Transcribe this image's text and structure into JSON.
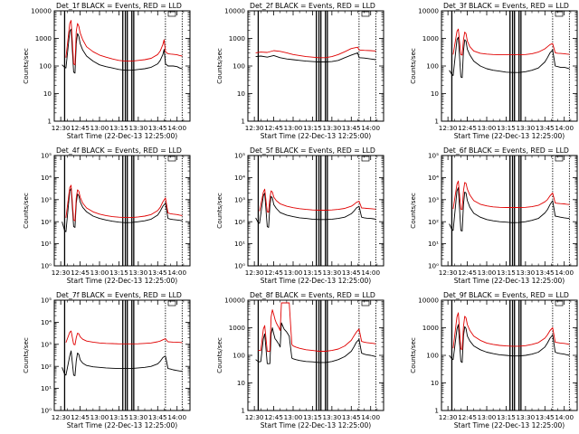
{
  "figure": {
    "xlabel": "Start Time (22-Dec-13 12:25:00)",
    "ylabel": "Counts/sec",
    "colors": {
      "events": "#000000",
      "lld": "#e00000",
      "axes": "#000000",
      "background": "#ffffff"
    },
    "x_ticks": [
      "12:30",
      "12:45",
      "13:00",
      "13:15",
      "13:30",
      "13:45",
      "14:00"
    ],
    "x_tick_minutes": [
      5,
      20,
      35,
      50,
      65,
      80,
      95
    ],
    "x_range_minutes": [
      0,
      105
    ],
    "vertical_marker_minutes": {
      "solid": [
        8,
        53,
        55,
        56.5,
        60,
        61.5
      ],
      "dotted": [
        86,
        99
      ]
    }
  },
  "chart_data": [
    {
      "type": "line",
      "title": "Det_1f BLACK = Events, RED = LLD",
      "ylog": true,
      "ylim": [
        1,
        10000
      ],
      "ytick_labels": [
        "1",
        "10",
        "100",
        "1000",
        "10000"
      ],
      "x": [
        6,
        8,
        9,
        12,
        13,
        15,
        16,
        17,
        18,
        19,
        20,
        22,
        25,
        30,
        35,
        40,
        45,
        50,
        55,
        60,
        65,
        70,
        75,
        80,
        82,
        84,
        85,
        86,
        87,
        88,
        90,
        92,
        95,
        97,
        99
      ],
      "series": [
        {
          "name": "BLACK = Events",
          "values": [
            110,
            90,
            85,
            1800,
            2200,
            60,
            55,
            650,
            1500,
            1200,
            650,
            380,
            230,
            150,
            110,
            95,
            85,
            75,
            70,
            70,
            75,
            80,
            90,
            120,
            160,
            260,
            400,
            120,
            110,
            100,
            100,
            100,
            95,
            85,
            80
          ]
        },
        {
          "name": "RED = LLD",
          "values": [
            null,
            null,
            200,
            3500,
            4500,
            120,
            110,
            1800,
            3500,
            2800,
            1600,
            900,
            500,
            330,
            250,
            210,
            180,
            160,
            150,
            150,
            160,
            170,
            190,
            260,
            350,
            600,
            900,
            330,
            300,
            280,
            270,
            265,
            255,
            240,
            230
          ]
        }
      ]
    },
    {
      "type": "line",
      "title": "Det_2f BLACK = Events, RED = LLD",
      "ylog": true,
      "ylim": [
        1,
        10000
      ],
      "ytick_labels": [
        "1",
        "10",
        "100",
        "1000",
        "10000"
      ],
      "x": [
        6,
        10,
        15,
        20,
        25,
        30,
        35,
        40,
        45,
        50,
        55,
        60,
        65,
        70,
        75,
        80,
        85,
        86,
        90,
        95,
        99
      ],
      "series": [
        {
          "name": "BLACK = Events",
          "values": [
            220,
            230,
            210,
            240,
            200,
            180,
            170,
            160,
            150,
            145,
            140,
            140,
            145,
            160,
            200,
            250,
            300,
            200,
            195,
            180,
            170
          ]
        },
        {
          "name": "RED = LLD",
          "values": [
            300,
            320,
            310,
            360,
            340,
            300,
            260,
            240,
            220,
            210,
            200,
            200,
            220,
            260,
            330,
            430,
            480,
            380,
            370,
            360,
            350
          ]
        }
      ]
    },
    {
      "type": "line",
      "title": "Det_3f BLACK = Events, RED = LLD",
      "ylog": true,
      "ylim": [
        1,
        10000
      ],
      "ytick_labels": [
        "1",
        "10",
        "100",
        "1000",
        "10000"
      ],
      "x": [
        6,
        8,
        9,
        12,
        13,
        15,
        16,
        17,
        18,
        19,
        20,
        22,
        25,
        30,
        35,
        40,
        45,
        50,
        55,
        60,
        65,
        70,
        75,
        80,
        82,
        84,
        86,
        88,
        90,
        92,
        95,
        97,
        99
      ],
      "series": [
        {
          "name": "BLACK = Events",
          "values": [
            70,
            50,
            45,
            900,
            1100,
            40,
            38,
            350,
            900,
            800,
            400,
            250,
            150,
            100,
            80,
            70,
            65,
            60,
            58,
            58,
            62,
            70,
            85,
            140,
            200,
            300,
            380,
            100,
            95,
            90,
            90,
            85,
            80
          ]
        },
        {
          "name": "RED = LLD",
          "values": [
            null,
            null,
            260,
            1800,
            2200,
            260,
            250,
            900,
            1700,
            1500,
            800,
            500,
            350,
            290,
            270,
            260,
            255,
            255,
            255,
            255,
            260,
            280,
            320,
            420,
            500,
            600,
            650,
            300,
            290,
            285,
            280,
            270,
            265
          ]
        }
      ]
    },
    {
      "type": "line",
      "title": "Det_4f BLACK = Events, RED = LLD",
      "ylog": true,
      "ylim": [
        1,
        100000
      ],
      "ytick_labels": [
        "10⁰",
        "10¹",
        "10²",
        "10³",
        "10⁴",
        "10⁵"
      ],
      "x": [
        6,
        8,
        9,
        12,
        13,
        15,
        16,
        17,
        18,
        19,
        20,
        22,
        25,
        30,
        35,
        40,
        45,
        50,
        55,
        60,
        65,
        70,
        75,
        80,
        82,
        84,
        86,
        88,
        90,
        92,
        95,
        97,
        99
      ],
      "series": [
        {
          "name": "BLACK = Events",
          "values": [
            100,
            40,
            35,
            2500,
            3200,
            60,
            55,
            700,
            1800,
            1500,
            800,
            450,
            280,
            180,
            140,
            120,
            105,
            95,
            90,
            92,
            100,
            110,
            130,
            200,
            300,
            500,
            700,
            140,
            130,
            125,
            120,
            115,
            110
          ]
        },
        {
          "name": "RED = LLD",
          "values": [
            null,
            null,
            150,
            3500,
            4500,
            120,
            110,
            1200,
            2800,
            2400,
            1300,
            700,
            420,
            280,
            220,
            190,
            170,
            160,
            155,
            155,
            165,
            180,
            210,
            320,
            450,
            800,
            1200,
            250,
            230,
            220,
            210,
            200,
            190
          ]
        }
      ]
    },
    {
      "type": "line",
      "title": "Det_5f BLACK = Events, RED = LLD",
      "ylog": true,
      "ylim": [
        1,
        100000
      ],
      "ytick_labels": [
        "10⁰",
        "10¹",
        "10²",
        "10³",
        "10⁴",
        "10⁵"
      ],
      "x": [
        6,
        8,
        9,
        12,
        13,
        15,
        16,
        17,
        18,
        19,
        20,
        22,
        25,
        30,
        35,
        40,
        45,
        50,
        55,
        60,
        65,
        70,
        75,
        80,
        82,
        84,
        86,
        88,
        90,
        92,
        95,
        97,
        99
      ],
      "series": [
        {
          "name": "BLACK = Events",
          "values": [
            150,
            90,
            85,
            1500,
            2000,
            60,
            55,
            500,
            1400,
            1200,
            600,
            400,
            260,
            200,
            170,
            150,
            140,
            130,
            125,
            125,
            130,
            140,
            160,
            230,
            300,
            420,
            500,
            160,
            150,
            145,
            140,
            135,
            130
          ]
        },
        {
          "name": "RED = LLD",
          "values": [
            null,
            null,
            300,
            2200,
            3000,
            280,
            270,
            1200,
            2500,
            2200,
            1300,
            900,
            650,
            500,
            430,
            390,
            360,
            340,
            330,
            330,
            340,
            360,
            400,
            500,
            600,
            750,
            850,
            420,
            410,
            400,
            390,
            380,
            370
          ]
        }
      ]
    },
    {
      "type": "line",
      "title": "Det_6f BLACK = Events, RED = LLD",
      "ylog": true,
      "ylim": [
        1,
        100000
      ],
      "ytick_labels": [
        "10⁰",
        "10¹",
        "10²",
        "10³",
        "10⁴",
        "10⁵"
      ],
      "x": [
        6,
        8,
        9,
        12,
        13,
        15,
        16,
        17,
        18,
        19,
        20,
        22,
        25,
        30,
        35,
        40,
        45,
        50,
        55,
        60,
        65,
        70,
        75,
        80,
        82,
        84,
        86,
        88,
        90,
        92,
        95,
        97,
        99
      ],
      "series": [
        {
          "name": "BLACK = Events",
          "values": [
            80,
            45,
            40,
            2500,
            3500,
            40,
            38,
            600,
            2200,
            2000,
            900,
            450,
            240,
            160,
            125,
            110,
            100,
            95,
            90,
            92,
            100,
            115,
            140,
            250,
            350,
            600,
            900,
            180,
            170,
            160,
            150,
            145,
            140
          ]
        },
        {
          "name": "RED = LLD",
          "values": [
            null,
            null,
            380,
            5000,
            7000,
            370,
            360,
            2500,
            6000,
            5500,
            3000,
            1600,
            900,
            620,
            520,
            470,
            450,
            440,
            440,
            440,
            450,
            480,
            550,
            800,
            1000,
            1500,
            2000,
            700,
            680,
            660,
            640,
            620,
            600
          ]
        }
      ]
    },
    {
      "type": "line",
      "title": "Det_7f BLACK = Events, RED = LLD",
      "ylog": true,
      "ylim": [
        1,
        100000
      ],
      "ytick_labels": [
        "10⁰",
        "10¹",
        "10²",
        "10³",
        "10⁴",
        "10⁵"
      ],
      "x": [
        6,
        8,
        9,
        12,
        13,
        15,
        16,
        17,
        18,
        19,
        20,
        22,
        25,
        30,
        35,
        40,
        45,
        50,
        55,
        60,
        65,
        70,
        75,
        80,
        82,
        84,
        86,
        88,
        90,
        92,
        95,
        97,
        99
      ],
      "series": [
        {
          "name": "BLACK = Events",
          "values": [
            90,
            45,
            40,
            300,
            500,
            40,
            38,
            180,
            400,
            350,
            200,
            140,
            110,
            95,
            90,
            85,
            82,
            80,
            80,
            80,
            85,
            90,
            100,
            130,
            170,
            250,
            300,
            80,
            75,
            70,
            65,
            62,
            60
          ]
        },
        {
          "name": "RED = LLD",
          "values": [
            null,
            null,
            1200,
            3500,
            4000,
            1000,
            950,
            2000,
            3200,
            3000,
            2200,
            1700,
            1400,
            1250,
            1150,
            1100,
            1080,
            1050,
            1050,
            1050,
            1060,
            1100,
            1150,
            1300,
            1400,
            1600,
            1800,
            1300,
            1280,
            1250,
            1230,
            1220,
            1200
          ]
        }
      ]
    },
    {
      "type": "line",
      "title": "Det_8f BLACK = Events, RED = LLD",
      "ylog": true,
      "ylim": [
        1,
        10000
      ],
      "ytick_labels": [
        "1",
        "10",
        "100",
        "1000",
        "10000"
      ],
      "x": [
        6,
        8,
        9,
        10,
        12,
        13,
        15,
        17,
        18,
        19,
        20,
        21,
        22,
        24,
        25,
        26,
        28,
        30,
        32,
        34,
        35,
        37,
        40,
        45,
        50,
        55,
        60,
        65,
        70,
        75,
        80,
        82,
        84,
        86,
        88,
        90,
        92,
        95,
        97,
        99
      ],
      "series": [
        {
          "name": "BLACK = Events",
          "values": [
            70,
            60,
            58,
            60,
            400,
            600,
            50,
            50,
            600,
            1000,
            600,
            400,
            350,
            250,
            200,
            1500,
            900,
            700,
            500,
            80,
            75,
            70,
            65,
            60,
            58,
            55,
            55,
            60,
            70,
            90,
            140,
            200,
            300,
            380,
            120,
            110,
            105,
            100,
            95,
            90
          ]
        },
        {
          "name": "RED = LLD",
          "values": [
            null,
            150,
            150,
            150,
            900,
            1200,
            140,
            140,
            2500,
            4500,
            3000,
            2000,
            1500,
            1000,
            800,
            8000,
            8000,
            8000,
            8000,
            250,
            220,
            200,
            180,
            160,
            150,
            140,
            140,
            150,
            170,
            220,
            350,
            500,
            700,
            900,
            320,
            300,
            290,
            280,
            270,
            260
          ]
        }
      ]
    },
    {
      "type": "line",
      "title": "Det_9f BLACK = Events, RED = LLD",
      "ylog": true,
      "ylim": [
        1,
        10000
      ],
      "ytick_labels": [
        "1",
        "10",
        "100",
        "1000",
        "10000"
      ],
      "x": [
        6,
        8,
        9,
        12,
        13,
        15,
        16,
        17,
        18,
        19,
        20,
        22,
        25,
        30,
        35,
        40,
        45,
        50,
        55,
        60,
        65,
        70,
        75,
        80,
        82,
        84,
        86,
        88,
        90,
        92,
        95,
        97,
        99
      ],
      "series": [
        {
          "name": "BLACK = Events",
          "values": [
            100,
            75,
            70,
            900,
            1300,
            60,
            55,
            500,
            1100,
            950,
            500,
            330,
            220,
            160,
            130,
            115,
            105,
            100,
            95,
            95,
            100,
            110,
            130,
            200,
            280,
            420,
            550,
            130,
            120,
            115,
            110,
            105,
            100
          ]
        },
        {
          "name": "RED = LLD",
          "values": [
            null,
            null,
            180,
            2500,
            3500,
            170,
            165,
            1100,
            2600,
            2300,
            1300,
            800,
            500,
            350,
            280,
            250,
            230,
            220,
            215,
            215,
            225,
            250,
            290,
            420,
            550,
            800,
            1000,
            300,
            290,
            280,
            270,
            260,
            250
          ]
        }
      ]
    }
  ]
}
